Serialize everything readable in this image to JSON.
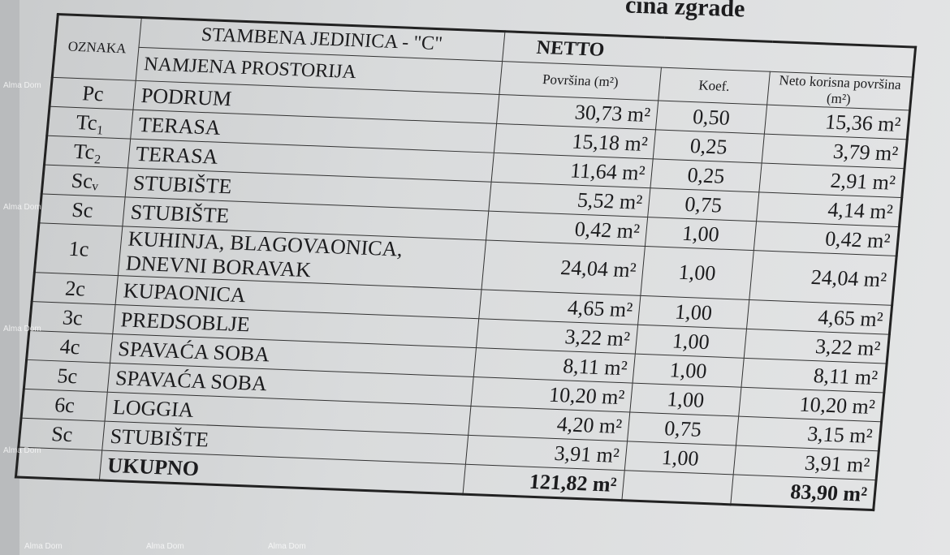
{
  "partial_heading": "cina zgrade",
  "table": {
    "title": "STAMBENA JEDINICA - \"C\"",
    "netto": "NETTO",
    "headers": {
      "oznaka": "OZNAKA",
      "namjena": "NAMJENA PROSTORIJA",
      "povrsina": "Površina (m²)",
      "koef": "Koef.",
      "neto": "Neto korisna površina (m²)"
    },
    "rows": [
      {
        "oznaka": "Pc",
        "namjena": "PODRUM",
        "povrsina": "30,73 m²",
        "koef": "0,50",
        "neto": "15,36 m²"
      },
      {
        "oznaka": "Tc₁",
        "namjena": "TERASA",
        "povrsina": "15,18 m²",
        "koef": "0,25",
        "neto": "3,79 m²"
      },
      {
        "oznaka": "Tc₂",
        "namjena": "TERASA",
        "povrsina": "11,64 m²",
        "koef": "0,25",
        "neto": "2,91 m²"
      },
      {
        "oznaka": "Scᵥ",
        "namjena": "STUBIŠTE",
        "povrsina": "5,52 m²",
        "koef": "0,75",
        "neto": "4,14 m²"
      },
      {
        "oznaka": "Sc",
        "namjena": "STUBIŠTE",
        "povrsina": "0,42 m²",
        "koef": "1,00",
        "neto": "0,42 m²"
      },
      {
        "oznaka": "1c",
        "namjena": "KUHINJA, BLAGOVAONICA, DNEVNI BORAVAK",
        "povrsina": "24,04 m²",
        "koef": "1,00",
        "neto": "24,04 m²"
      },
      {
        "oznaka": "2c",
        "namjena": "KUPAONICA",
        "povrsina": "4,65 m²",
        "koef": "1,00",
        "neto": "4,65 m²"
      },
      {
        "oznaka": "3c",
        "namjena": "PREDSOBLJE",
        "povrsina": "3,22 m²",
        "koef": "1,00",
        "neto": "3,22 m²"
      },
      {
        "oznaka": "4c",
        "namjena": "SPAVAĆA SOBA",
        "povrsina": "8,11 m²",
        "koef": "1,00",
        "neto": "8,11 m²"
      },
      {
        "oznaka": "5c",
        "namjena": "SPAVAĆA SOBA",
        "povrsina": "10,20 m²",
        "koef": "1,00",
        "neto": "10,20 m²"
      },
      {
        "oznaka": "6c",
        "namjena": "LOGGIA",
        "povrsina": "4,20 m²",
        "koef": "0,75",
        "neto": "3,15 m²"
      },
      {
        "oznaka": "Sc",
        "namjena": "STUBIŠTE",
        "povrsina": "3,91 m²",
        "koef": "1,00",
        "neto": "3,91 m²"
      }
    ],
    "total": {
      "label": "UKUPNO",
      "povrsina": "121,82 m²",
      "neto": "83,90 m²"
    }
  },
  "watermark": "Alma Dom"
}
